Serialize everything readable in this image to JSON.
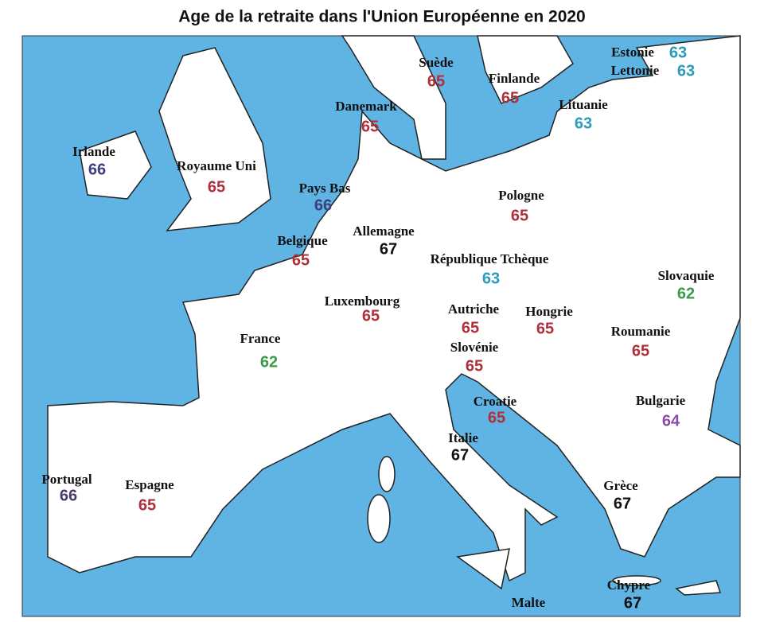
{
  "title": "Age de la retraite dans l'Union Européenne en 2020",
  "countries": [
    {
      "name": "Suède",
      "age": 65,
      "color": "#b0303a"
    },
    {
      "name": "Finlande",
      "age": 65,
      "color": "#b0303a"
    },
    {
      "name": "Estonie",
      "age": 63,
      "color": "#2a9bb8"
    },
    {
      "name": "Lettonie",
      "age": 63,
      "color": "#2a9bb8"
    },
    {
      "name": "Lituanie",
      "age": 63,
      "color": "#2a9bb8"
    },
    {
      "name": "Danemark",
      "age": 65,
      "color": "#b0303a"
    },
    {
      "name": "Irlande",
      "age": 66,
      "color": "#3a3f7a"
    },
    {
      "name": "Royaume Uni",
      "age": 65,
      "color": "#b0303a"
    },
    {
      "name": "Pays Bas",
      "age": 66,
      "color": "#3a3f7a"
    },
    {
      "name": "Pologne",
      "age": 65,
      "color": "#b0303a"
    },
    {
      "name": "Allemagne",
      "age": 67,
      "color": "#111111"
    },
    {
      "name": "Belgique",
      "age": 65,
      "color": "#b0303a"
    },
    {
      "name": "République Tchèque",
      "age": 63,
      "color": "#2a9bb8"
    },
    {
      "name": "Slovaquie",
      "age": 62,
      "color": "#3a9a4a"
    },
    {
      "name": "Luxembourg",
      "age": 65,
      "color": "#b0303a"
    },
    {
      "name": "Autriche",
      "age": 65,
      "color": "#b0303a"
    },
    {
      "name": "Hongrie",
      "age": 65,
      "color": "#b0303a"
    },
    {
      "name": "France",
      "age": 62,
      "color": "#3a9a4a"
    },
    {
      "name": "Slovénie",
      "age": 65,
      "color": "#b0303a"
    },
    {
      "name": "Roumanie",
      "age": 65,
      "color": "#b0303a"
    },
    {
      "name": "Croatie",
      "age": 65,
      "color": "#b0303a"
    },
    {
      "name": "Bulgarie",
      "age": 64,
      "color": "#8a4aa8"
    },
    {
      "name": "Italie",
      "age": 67,
      "color": "#111111"
    },
    {
      "name": "Portugal",
      "age": 66,
      "color": "#4a3a6a"
    },
    {
      "name": "Espagne",
      "age": 65,
      "color": "#b0303a"
    },
    {
      "name": "Grèce",
      "age": 67,
      "color": "#111111"
    },
    {
      "name": "Chypre",
      "age": 67,
      "color": "#111111"
    },
    {
      "name": "Malte"
    }
  ]
}
